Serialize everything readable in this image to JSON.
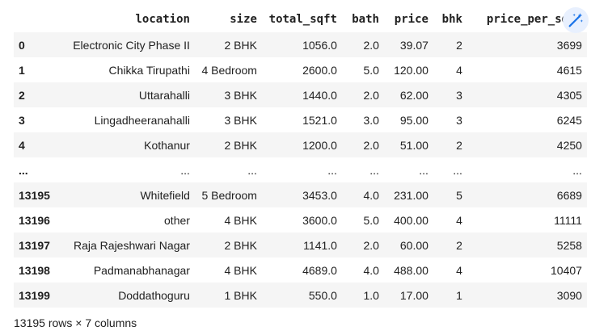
{
  "table": {
    "columns": [
      "",
      "location",
      "size",
      "total_sqft",
      "bath",
      "price",
      "bhk",
      "price_per_sqft"
    ],
    "rows": [
      [
        "0",
        "Electronic City Phase II",
        "2 BHK",
        "1056.0",
        "2.0",
        "39.07",
        "2",
        "3699"
      ],
      [
        "1",
        "Chikka Tirupathi",
        "4 Bedroom",
        "2600.0",
        "5.0",
        "120.00",
        "4",
        "4615"
      ],
      [
        "2",
        "Uttarahalli",
        "3 BHK",
        "1440.0",
        "2.0",
        "62.00",
        "3",
        "4305"
      ],
      [
        "3",
        "Lingadheeranahalli",
        "3 BHK",
        "1521.0",
        "3.0",
        "95.00",
        "3",
        "6245"
      ],
      [
        "4",
        "Kothanur",
        "2 BHK",
        "1200.0",
        "2.0",
        "51.00",
        "2",
        "4250"
      ],
      [
        "...",
        "...",
        "...",
        "...",
        "...",
        "...",
        "...",
        "..."
      ],
      [
        "13195",
        "Whitefield",
        "5 Bedroom",
        "3453.0",
        "4.0",
        "231.00",
        "5",
        "6689"
      ],
      [
        "13196",
        "other",
        "4 BHK",
        "3600.0",
        "5.0",
        "400.00",
        "4",
        "11111"
      ],
      [
        "13197",
        "Raja Rajeshwari Nagar",
        "2 BHK",
        "1141.0",
        "2.0",
        "60.00",
        "2",
        "5258"
      ],
      [
        "13198",
        "Padmanabhanagar",
        "4 BHK",
        "4689.0",
        "4.0",
        "488.00",
        "4",
        "10407"
      ],
      [
        "13199",
        "Doddathoguru",
        "1 BHK",
        "550.0",
        "1.0",
        "17.00",
        "1",
        "3090"
      ]
    ],
    "shape_text": "13195 rows × 7 columns"
  },
  "toolbar": {
    "wand_icon": "magic-wand-icon",
    "accent": "#1a73e8"
  }
}
